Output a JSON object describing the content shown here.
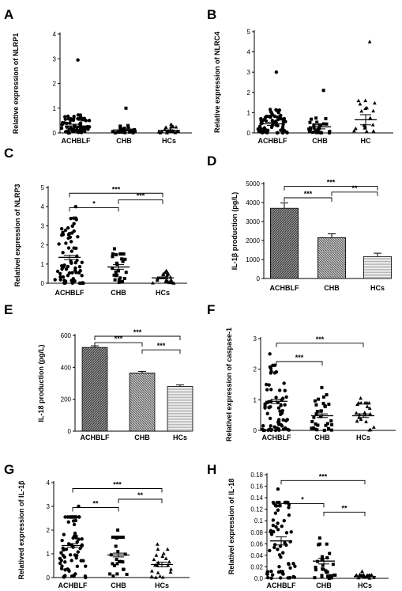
{
  "chart_data": [
    {
      "panel": "A",
      "type": "scatter",
      "ylabel": "Relative expression of NLRP1",
      "categories": [
        "ACHBLF",
        "CHB",
        "HCs"
      ],
      "ylim": [
        0,
        4
      ],
      "yticks": [
        0,
        1,
        2,
        3,
        4
      ],
      "groups": [
        {
          "marker": "circle",
          "n": 70,
          "mean": 0.28,
          "sem": 0.07,
          "max": 2.95
        },
        {
          "marker": "square",
          "n": 25,
          "mean": 0.12,
          "sem": 0.04,
          "max": 1.0
        },
        {
          "marker": "triangle",
          "n": 22,
          "mean": 0.1,
          "sem": 0.02,
          "max": 0.35
        }
      ],
      "significance": []
    },
    {
      "panel": "B",
      "type": "scatter",
      "ylabel": "Relative expression of NLRC4",
      "categories": [
        "ACHBLF",
        "CHB",
        "HC"
      ],
      "ylim": [
        0,
        5
      ],
      "yticks": [
        0,
        1,
        2,
        3,
        4,
        5
      ],
      "groups": [
        {
          "marker": "circle",
          "n": 70,
          "mean": 0.45,
          "sem": 0.08,
          "max": 3.0
        },
        {
          "marker": "square",
          "n": 25,
          "mean": 0.3,
          "sem": 0.1,
          "max": 2.1
        },
        {
          "marker": "triangle",
          "n": 20,
          "mean": 0.65,
          "sem": 0.25,
          "max": 4.5
        }
      ],
      "significance": []
    },
    {
      "panel": "C",
      "type": "scatter",
      "ylabel": "Relativel expression of NLRP3",
      "categories": [
        "ACHBLF",
        "CHB",
        "HCs"
      ],
      "ylim": [
        0,
        5
      ],
      "yticks": [
        0,
        1,
        2,
        3,
        4,
        5
      ],
      "groups": [
        {
          "marker": "circle",
          "n": 70,
          "mean": 1.35,
          "sem": 0.11,
          "max": 4.0
        },
        {
          "marker": "square",
          "n": 30,
          "mean": 0.85,
          "sem": 0.12,
          "max": 1.8
        },
        {
          "marker": "triangle",
          "n": 22,
          "mean": 0.28,
          "sem": 0.05,
          "max": 0.65
        }
      ],
      "significance": [
        {
          "from": 0,
          "to": 2,
          "label": "***",
          "y": 4.7
        },
        {
          "from": 0,
          "to": 1,
          "label": "*",
          "y": 3.95
        },
        {
          "from": 1,
          "to": 2,
          "label": "***",
          "y": 4.35
        }
      ]
    },
    {
      "panel": "D",
      "type": "bar",
      "ylabel": "IL-1β production (pg/L)",
      "categories": [
        "ACHBLF",
        "CHB",
        "HCs"
      ],
      "ylim": [
        0,
        5000
      ],
      "yticks": [
        0,
        1000,
        2000,
        3000,
        4000,
        5000
      ],
      "values": [
        3700,
        2150,
        1150
      ],
      "errors": [
        280,
        200,
        180
      ],
      "fills": [
        "dark-diagonal",
        "medium-diagonal",
        "light-horizontal"
      ],
      "significance": [
        {
          "from": 0,
          "to": 2,
          "label": "***",
          "y": 4850
        },
        {
          "from": 0,
          "to": 1,
          "label": "***",
          "y": 4250
        },
        {
          "from": 1,
          "to": 2,
          "label": "**",
          "y": 4550
        }
      ]
    },
    {
      "panel": "E",
      "type": "bar",
      "ylabel": "IL-18 production (pg/L)",
      "categories": [
        "ACHBLF",
        "CHB",
        "HCs"
      ],
      "ylim": [
        0,
        600
      ],
      "yticks": [
        0,
        200,
        400,
        600
      ],
      "values": [
        525,
        365,
        280
      ],
      "errors": [
        10,
        10,
        10
      ],
      "fills": [
        "dark-diagonal",
        "medium-diagonal",
        "light-horizontal"
      ],
      "significance": [
        {
          "from": 0,
          "to": 2,
          "label": "***",
          "y": 595
        },
        {
          "from": 0,
          "to": 1,
          "label": "***",
          "y": 555
        },
        {
          "from": 1,
          "to": 2,
          "label": "***",
          "y": 510
        }
      ]
    },
    {
      "panel": "F",
      "type": "scatter",
      "ylabel": "Relativel expression of caspase-1",
      "categories": [
        "ACHBLF",
        "CHB",
        "HCs"
      ],
      "ylim": [
        0,
        3
      ],
      "yticks": [
        0,
        1,
        2,
        3
      ],
      "groups": [
        {
          "marker": "circle",
          "n": 70,
          "mean": 0.95,
          "sem": 0.07,
          "max": 2.5
        },
        {
          "marker": "square",
          "n": 30,
          "mean": 0.48,
          "sem": 0.06,
          "max": 1.4
        },
        {
          "marker": "triangle",
          "n": 22,
          "mean": 0.48,
          "sem": 0.06,
          "max": 1.05
        }
      ],
      "significance": [
        {
          "from": 0,
          "to": 2,
          "label": "***",
          "y": 2.85
        },
        {
          "from": 0,
          "to": 1,
          "label": "***",
          "y": 2.25
        }
      ]
    },
    {
      "panel": "G",
      "type": "scatter",
      "ylabel": "Relatived expression of IL-1β",
      "categories": [
        "ACHBLF",
        "CHB",
        "HCs"
      ],
      "ylim": [
        0,
        4
      ],
      "yticks": [
        0,
        1,
        2,
        3,
        4
      ],
      "groups": [
        {
          "marker": "circle",
          "n": 70,
          "mean": 1.35,
          "sem": 0.08,
          "max": 3.0
        },
        {
          "marker": "square",
          "n": 28,
          "mean": 0.95,
          "sem": 0.08,
          "max": 2.0
        },
        {
          "marker": "triangle",
          "n": 22,
          "mean": 0.55,
          "sem": 0.1,
          "max": 1.4
        }
      ],
      "significance": [
        {
          "from": 0,
          "to": 2,
          "label": "***",
          "y": 3.75
        },
        {
          "from": 0,
          "to": 1,
          "label": "**",
          "y": 2.95
        },
        {
          "from": 1,
          "to": 2,
          "label": "**",
          "y": 3.3
        }
      ]
    },
    {
      "panel": "H",
      "type": "scatter",
      "ylabel": "Relativel expression of IL-18",
      "categories": [
        "ACHBLF",
        "CHB",
        "HCs"
      ],
      "ylim": [
        0,
        0.18
      ],
      "yticks": [
        0.0,
        0.02,
        0.04,
        0.06,
        0.08,
        0.1,
        0.12,
        0.14,
        0.16,
        0.18
      ],
      "ytick_labels": [
        "0.0",
        "0.02",
        "0.04",
        "0.06",
        "0.08",
        "0.1",
        "0.12",
        "0.14",
        "0.16",
        "0.18"
      ],
      "groups": [
        {
          "marker": "circle",
          "n": 70,
          "mean": 0.065,
          "sem": 0.007,
          "max": 0.155
        },
        {
          "marker": "square",
          "n": 28,
          "mean": 0.03,
          "sem": 0.005,
          "max": 0.07
        },
        {
          "marker": "triangle",
          "n": 20,
          "mean": 0.003,
          "sem": 0.001,
          "max": 0.012
        }
      ],
      "significance": [
        {
          "from": 0,
          "to": 2,
          "label": "***",
          "y": 0.17
        },
        {
          "from": 0,
          "to": 1,
          "label": "*",
          "y": 0.13
        },
        {
          "from": 1,
          "to": 2,
          "label": "**",
          "y": 0.115
        }
      ]
    }
  ]
}
